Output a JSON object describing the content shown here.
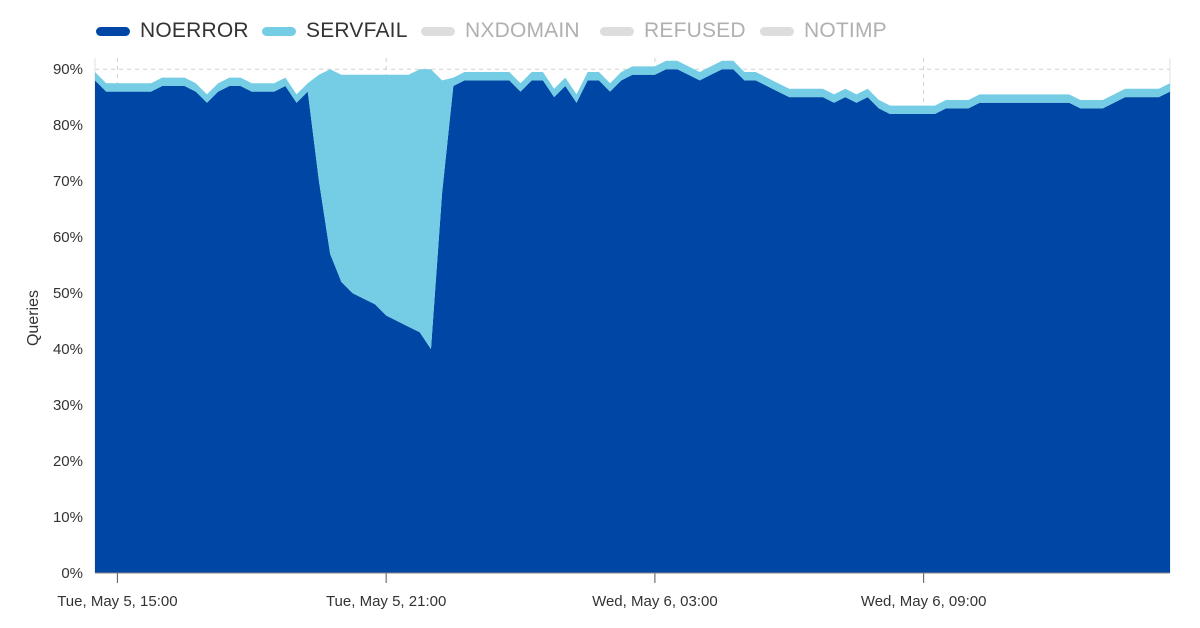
{
  "legend": [
    {
      "name": "NOERROR",
      "color": "#0046a5",
      "active": true
    },
    {
      "name": "SERVFAIL",
      "color": "#74cde4",
      "active": true
    },
    {
      "name": "NXDOMAIN",
      "color": "#dddddd",
      "active": false
    },
    {
      "name": "REFUSED",
      "color": "#dddddd",
      "active": false
    },
    {
      "name": "NOTIMP",
      "color": "#dddddd",
      "active": false
    }
  ],
  "chart_data": {
    "type": "area",
    "stacked": true,
    "title": "",
    "xlabel": "",
    "ylabel": "Queries",
    "ylim": [
      0,
      92
    ],
    "y_ticks": [
      "0%",
      "10%",
      "20%",
      "30%",
      "40%",
      "50%",
      "60%",
      "70%",
      "80%",
      "90%"
    ],
    "y_tick_values": [
      0,
      10,
      20,
      30,
      40,
      50,
      60,
      70,
      80,
      90
    ],
    "x_range": [
      "Tue, May 5, 14:30",
      "Wed, May 6, 14:30"
    ],
    "x_ticks": [
      {
        "label": "Tue, May 5, 15:00",
        "time": "2020-05-05T15:00"
      },
      {
        "label": "Tue, May 5, 21:00",
        "time": "2020-05-05T21:00"
      },
      {
        "label": "Wed, May 6, 03:00",
        "time": "2020-05-06T03:00"
      },
      {
        "label": "Wed, May 6, 09:00",
        "time": "2020-05-06T09:00"
      }
    ],
    "grid": true,
    "legend_position": "top-left",
    "x": [
      "2020-05-05T14:30",
      "2020-05-05T14:45",
      "2020-05-05T15:00",
      "2020-05-05T15:15",
      "2020-05-05T15:30",
      "2020-05-05T15:45",
      "2020-05-05T16:00",
      "2020-05-05T16:15",
      "2020-05-05T16:30",
      "2020-05-05T16:45",
      "2020-05-05T17:00",
      "2020-05-05T17:15",
      "2020-05-05T17:30",
      "2020-05-05T17:45",
      "2020-05-05T18:00",
      "2020-05-05T18:15",
      "2020-05-05T18:30",
      "2020-05-05T18:45",
      "2020-05-05T19:00",
      "2020-05-05T19:15",
      "2020-05-05T19:30",
      "2020-05-05T19:45",
      "2020-05-05T20:00",
      "2020-05-05T20:15",
      "2020-05-05T20:30",
      "2020-05-05T20:45",
      "2020-05-05T21:00",
      "2020-05-05T21:15",
      "2020-05-05T21:30",
      "2020-05-05T21:45",
      "2020-05-05T22:00",
      "2020-05-05T22:15",
      "2020-05-05T22:30",
      "2020-05-05T22:45",
      "2020-05-05T23:00",
      "2020-05-05T23:15",
      "2020-05-05T23:30",
      "2020-05-05T23:45",
      "2020-05-06T00:00",
      "2020-05-06T00:15",
      "2020-05-06T00:30",
      "2020-05-06T00:45",
      "2020-05-06T01:00",
      "2020-05-06T01:15",
      "2020-05-06T01:30",
      "2020-05-06T01:45",
      "2020-05-06T02:00",
      "2020-05-06T02:15",
      "2020-05-06T02:30",
      "2020-05-06T02:45",
      "2020-05-06T03:00",
      "2020-05-06T03:15",
      "2020-05-06T03:30",
      "2020-05-06T03:45",
      "2020-05-06T04:00",
      "2020-05-06T04:15",
      "2020-05-06T04:30",
      "2020-05-06T04:45",
      "2020-05-06T05:00",
      "2020-05-06T05:15",
      "2020-05-06T05:30",
      "2020-05-06T05:45",
      "2020-05-06T06:00",
      "2020-05-06T06:15",
      "2020-05-06T06:30",
      "2020-05-06T06:45",
      "2020-05-06T07:00",
      "2020-05-06T07:15",
      "2020-05-06T07:30",
      "2020-05-06T07:45",
      "2020-05-06T08:00",
      "2020-05-06T08:15",
      "2020-05-06T08:30",
      "2020-05-06T08:45",
      "2020-05-06T09:00",
      "2020-05-06T09:15",
      "2020-05-06T09:30",
      "2020-05-06T09:45",
      "2020-05-06T10:00",
      "2020-05-06T10:15",
      "2020-05-06T10:30",
      "2020-05-06T10:45",
      "2020-05-06T11:00",
      "2020-05-06T11:15",
      "2020-05-06T11:30",
      "2020-05-06T11:45",
      "2020-05-06T12:00",
      "2020-05-06T12:15",
      "2020-05-06T12:30",
      "2020-05-06T12:45",
      "2020-05-06T13:00",
      "2020-05-06T13:15",
      "2020-05-06T13:30",
      "2020-05-06T13:45",
      "2020-05-06T14:00",
      "2020-05-06T14:15",
      "2020-05-06T14:30"
    ],
    "series": [
      {
        "name": "NOERROR",
        "color": "#0046a5",
        "values": [
          88,
          86,
          86,
          86,
          86,
          86,
          87,
          87,
          87,
          86,
          84,
          86,
          87,
          87,
          86,
          86,
          86,
          87,
          84,
          86,
          70,
          57,
          52,
          50,
          49,
          48,
          46,
          45,
          44,
          43,
          40,
          68,
          87,
          88,
          88,
          88,
          88,
          88,
          86,
          88,
          88,
          85,
          87,
          84,
          88,
          88,
          86,
          88,
          89,
          89,
          89,
          90,
          90,
          89,
          88,
          89,
          90,
          90,
          88,
          88,
          87,
          86,
          85,
          85,
          85,
          85,
          84,
          85,
          84,
          85,
          83,
          82,
          82,
          82,
          82,
          82,
          83,
          83,
          83,
          84,
          84,
          84,
          84,
          84,
          84,
          84,
          84,
          84,
          83,
          83,
          83,
          84,
          85,
          85,
          85,
          85,
          86
        ]
      },
      {
        "name": "SERVFAIL",
        "color": "#74cde4",
        "values": [
          1.5,
          1.5,
          1.5,
          1.5,
          1.5,
          1.5,
          1.5,
          1.5,
          1.5,
          1.5,
          1.5,
          1.5,
          1.5,
          1.5,
          1.5,
          1.5,
          1.5,
          1.5,
          1.5,
          1.5,
          19,
          33,
          37,
          39,
          40,
          41,
          43,
          44,
          45,
          47,
          50,
          20,
          1.5,
          1.5,
          1.5,
          1.5,
          1.5,
          1.5,
          1.5,
          1.5,
          1.5,
          1.5,
          1.5,
          1.5,
          1.5,
          1.5,
          1.5,
          1.5,
          1.5,
          1.5,
          1.5,
          1.5,
          1.5,
          1.5,
          1.5,
          1.5,
          1.5,
          1.5,
          1.5,
          1.5,
          1.5,
          1.5,
          1.5,
          1.5,
          1.5,
          1.5,
          1.5,
          1.5,
          1.5,
          1.5,
          1.5,
          1.5,
          1.5,
          1.5,
          1.5,
          1.5,
          1.5,
          1.5,
          1.5,
          1.5,
          1.5,
          1.5,
          1.5,
          1.5,
          1.5,
          1.5,
          1.5,
          1.5,
          1.5,
          1.5,
          1.5,
          1.5,
          1.5,
          1.5,
          1.5,
          1.5,
          1.5
        ]
      }
    ]
  }
}
